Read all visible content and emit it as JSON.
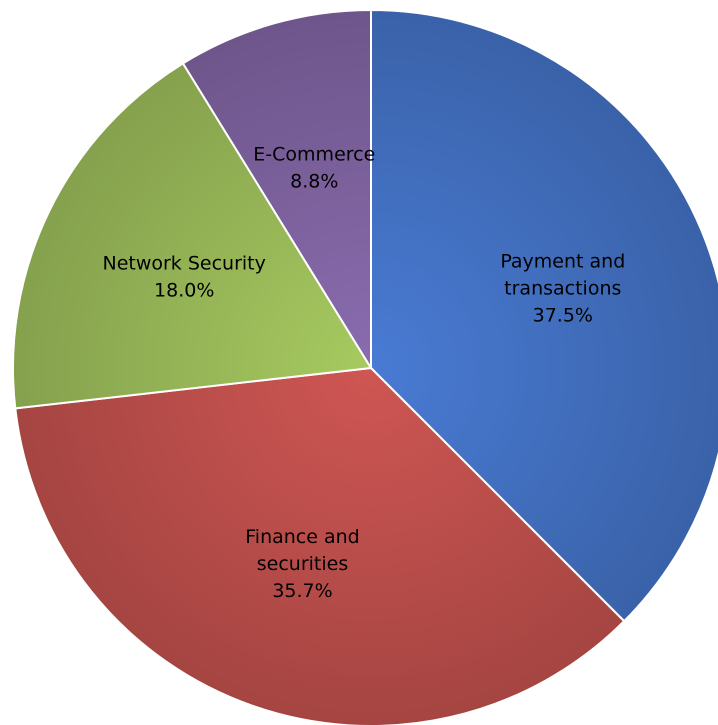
{
  "chart_data": {
    "type": "pie",
    "title": "",
    "start_angle_deg": 0,
    "direction": "clockwise",
    "legend": "none",
    "data_labels": "category name and percentage inside slices",
    "slices": [
      {
        "label_lines": [
          "Payment and",
          "transactions"
        ],
        "percent_label": "37.5%",
        "value": 37.5,
        "color": "#4472C4"
      },
      {
        "label_lines": [
          "Finance and",
          "securities"
        ],
        "percent_label": "35.7%",
        "value": 35.7,
        "color": "#C0504D"
      },
      {
        "label_lines": [
          "Network Security"
        ],
        "percent_label": "18.0%",
        "value": 18.0,
        "color": "#9BBB59"
      },
      {
        "label_lines": [
          "E-Commerce"
        ],
        "percent_label": "8.8%",
        "value": 8.8,
        "color": "#8064A2"
      }
    ]
  }
}
